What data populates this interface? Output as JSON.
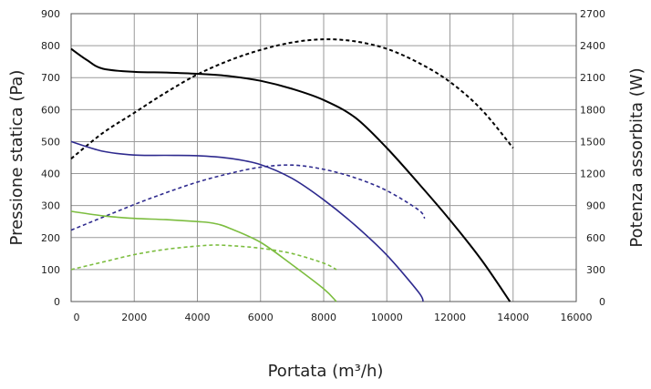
{
  "chart_data": {
    "type": "line",
    "xlabel": "Portata (m³/h)",
    "ylabel": "Pressione statica (Pa)",
    "y2label": "Potenza assorbita (W)",
    "xlim": [
      0,
      16000
    ],
    "ylim": [
      0,
      900
    ],
    "y2lim": [
      0,
      2700
    ],
    "xticks": [
      0,
      2000,
      4000,
      6000,
      8000,
      10000,
      12000,
      14000,
      16000
    ],
    "yticks": [
      0,
      100,
      200,
      300,
      400,
      500,
      600,
      700,
      800,
      900
    ],
    "y2ticks": [
      0,
      300,
      600,
      900,
      1200,
      1500,
      1800,
      2100,
      2400,
      2700
    ],
    "grid": true,
    "series": [
      {
        "axis": "left",
        "style": "solid",
        "color": "#000000",
        "points": [
          [
            0,
            790
          ],
          [
            500,
            755
          ],
          [
            1000,
            728
          ],
          [
            2000,
            718
          ],
          [
            3000,
            716
          ],
          [
            4000,
            712
          ],
          [
            5000,
            705
          ],
          [
            6000,
            690
          ],
          [
            7000,
            665
          ],
          [
            8000,
            630
          ],
          [
            9000,
            575
          ],
          [
            10000,
            480
          ],
          [
            11000,
            370
          ],
          [
            12000,
            255
          ],
          [
            13000,
            130
          ],
          [
            13900,
            0
          ]
        ]
      },
      {
        "axis": "right",
        "style": "dashed",
        "color": "#000000",
        "points": [
          [
            0,
            1340
          ],
          [
            1000,
            1580
          ],
          [
            2000,
            1770
          ],
          [
            3000,
            1960
          ],
          [
            4000,
            2130
          ],
          [
            5000,
            2260
          ],
          [
            6000,
            2360
          ],
          [
            7000,
            2430
          ],
          [
            8000,
            2460
          ],
          [
            9000,
            2440
          ],
          [
            10000,
            2370
          ],
          [
            11000,
            2240
          ],
          [
            12000,
            2060
          ],
          [
            13000,
            1800
          ],
          [
            14000,
            1440
          ]
        ]
      },
      {
        "axis": "left",
        "style": "solid",
        "color": "#2e2a8e",
        "points": [
          [
            0,
            500
          ],
          [
            1000,
            470
          ],
          [
            2000,
            458
          ],
          [
            3000,
            457
          ],
          [
            4000,
            456
          ],
          [
            5000,
            448
          ],
          [
            6000,
            428
          ],
          [
            7000,
            385
          ],
          [
            8000,
            318
          ],
          [
            9000,
            238
          ],
          [
            10000,
            145
          ],
          [
            11000,
            30
          ],
          [
            11150,
            0
          ]
        ]
      },
      {
        "axis": "right",
        "style": "dashed",
        "color": "#2e2a8e",
        "points": [
          [
            0,
            670
          ],
          [
            1000,
            790
          ],
          [
            2000,
            910
          ],
          [
            3000,
            1020
          ],
          [
            4000,
            1120
          ],
          [
            5000,
            1200
          ],
          [
            6000,
            1260
          ],
          [
            7000,
            1280
          ],
          [
            8000,
            1240
          ],
          [
            9000,
            1160
          ],
          [
            10000,
            1040
          ],
          [
            11000,
            860
          ],
          [
            11200,
            780
          ]
        ]
      },
      {
        "axis": "left",
        "style": "solid",
        "color": "#7cbd3f",
        "points": [
          [
            0,
            282
          ],
          [
            1000,
            268
          ],
          [
            2000,
            260
          ],
          [
            3000,
            256
          ],
          [
            4000,
            250
          ],
          [
            4500,
            245
          ],
          [
            5000,
            230
          ],
          [
            6000,
            185
          ],
          [
            7000,
            115
          ],
          [
            8000,
            40
          ],
          [
            8400,
            0
          ]
        ]
      },
      {
        "axis": "right",
        "style": "dashed",
        "color": "#7cbd3f",
        "points": [
          [
            0,
            300
          ],
          [
            1000,
            370
          ],
          [
            2000,
            440
          ],
          [
            3000,
            490
          ],
          [
            4000,
            520
          ],
          [
            4500,
            530
          ],
          [
            5000,
            525
          ],
          [
            6000,
            500
          ],
          [
            7000,
            450
          ],
          [
            8000,
            360
          ],
          [
            8400,
            300
          ]
        ]
      }
    ]
  }
}
